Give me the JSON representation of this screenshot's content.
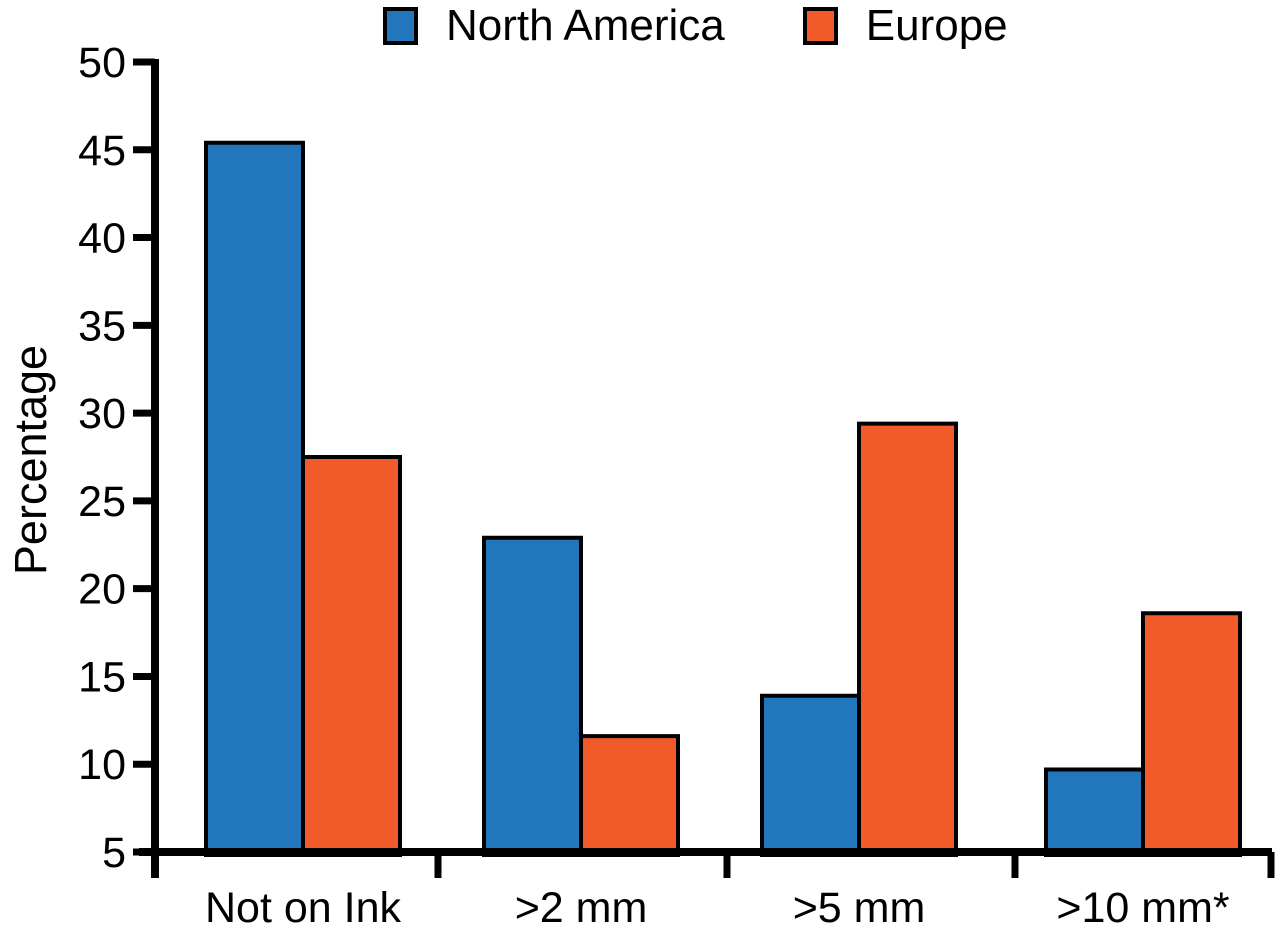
{
  "chart_data": {
    "type": "bar",
    "title": "",
    "ylabel": "Percentage",
    "xlabel": "",
    "categories": [
      "Not on Ink",
      ">2 mm",
      ">5 mm",
      ">10 mm*"
    ],
    "series": [
      {
        "name": "North America",
        "color": "#2176BC",
        "values": [
          45.4,
          22.9,
          13.9,
          9.7
        ]
      },
      {
        "name": "Europe",
        "color": "#F15A29",
        "values": [
          27.5,
          11.6,
          29.4,
          18.6
        ]
      }
    ],
    "ylim": [
      5,
      50
    ],
    "yticks": [
      5,
      10,
      15,
      20,
      25,
      30,
      35,
      40,
      45,
      50
    ],
    "grid": false,
    "legend_position": "top",
    "axis_color": "#000000",
    "bar_outline_color": "#000000"
  }
}
